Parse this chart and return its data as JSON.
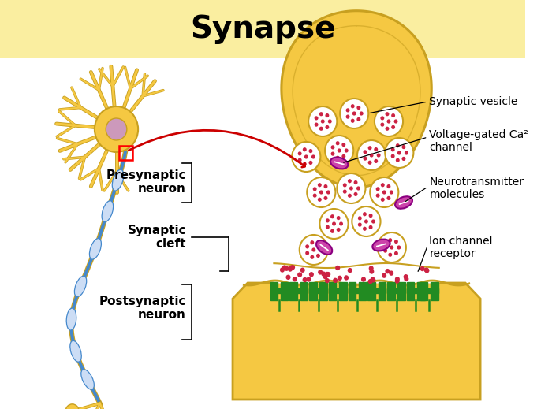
{
  "title": "Synapse",
  "title_fontsize": 28,
  "title_fontweight": "bold",
  "header_bg": "#FAEEA0",
  "main_bg": "#FFFFFF",
  "presynaptic_label": "Presynaptic\nneuron",
  "synaptic_cleft_label": "Synaptic\ncleft",
  "postsynaptic_label": "Postsynaptic\nneuron",
  "synaptic_vesicle_label": "Synaptic vesicle",
  "voltage_gated_label": "Voltage-gated Ca²⁺\nchannel",
  "neurotransmitter_label": "Neurotransmitter\nmolecules",
  "ion_channel_label": "Ion channel\nreceptor",
  "terminal_color": "#F5C842",
  "terminal_border": "#C8A020",
  "vesicle_fill": "#FFFFFF",
  "vesicle_border": "#C8A020",
  "vesicle_dot_color": "#CC2244",
  "ca_channel_color": "#CC44AA",
  "ion_receptor_color": "#228B22",
  "neuron_body_color": "#F5C842",
  "neuron_border_color": "#C8A020",
  "axon_color": "#4488CC",
  "nucleus_color": "#CC99BB",
  "dendrite_color": "#F5C842",
  "arrow_color": "#CC0000",
  "cleft_dot_color": "#CC2244",
  "label_fontsize": 11,
  "label_fontweight": "bold"
}
